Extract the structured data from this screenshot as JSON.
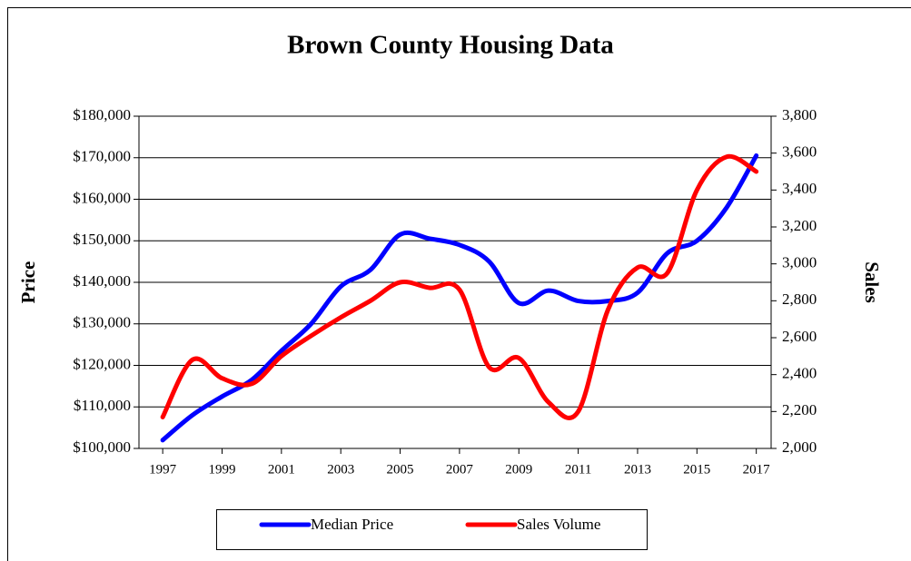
{
  "chart_data": {
    "type": "line",
    "title": "Brown County Housing  Data",
    "ylabel": "Price",
    "y2label": "Sales",
    "x": [
      1997,
      1998,
      1999,
      2000,
      2001,
      2002,
      2003,
      2004,
      2005,
      2006,
      2007,
      2008,
      2009,
      2010,
      2011,
      2012,
      2013,
      2014,
      2015,
      2016,
      2017
    ],
    "xlim": [
      1996.2,
      2017.5
    ],
    "xticks": [
      1997,
      1999,
      2001,
      2003,
      2005,
      2007,
      2009,
      2011,
      2013,
      2015,
      2017
    ],
    "ylim": [
      100000,
      180000
    ],
    "yticks": [
      {
        "value": 100000,
        "label": "$100,000"
      },
      {
        "value": 110000,
        "label": "$110,000"
      },
      {
        "value": 120000,
        "label": "$120,000"
      },
      {
        "value": 130000,
        "label": "$130,000"
      },
      {
        "value": 140000,
        "label": "$140,000"
      },
      {
        "value": 150000,
        "label": "$150,000"
      },
      {
        "value": 160000,
        "label": "$160,000"
      },
      {
        "value": 170000,
        "label": "$170,000"
      },
      {
        "value": 180000,
        "label": "$180,000"
      }
    ],
    "y2lim": [
      2000,
      3800
    ],
    "y2ticks": [
      {
        "value": 2000,
        "label": "2,000"
      },
      {
        "value": 2200,
        "label": "2,200"
      },
      {
        "value": 2400,
        "label": "2,400"
      },
      {
        "value": 2600,
        "label": "2,600"
      },
      {
        "value": 2800,
        "label": "2,800"
      },
      {
        "value": 3000,
        "label": "3,000"
      },
      {
        "value": 3200,
        "label": "3,200"
      },
      {
        "value": 3400,
        "label": "3,400"
      },
      {
        "value": 3600,
        "label": "3,600"
      },
      {
        "value": 3800,
        "label": "3,800"
      }
    ],
    "grid": true,
    "legend": "bottom",
    "series": [
      {
        "name": "Median Price",
        "color": "#0000ff",
        "values": [
          102000,
          108000,
          112500,
          116500,
          123500,
          130000,
          139000,
          143000,
          151500,
          150500,
          149000,
          145000,
          135000,
          138000,
          135500,
          135500,
          137500,
          147000,
          150000,
          158000,
          170500
        ]
      },
      {
        "name": "Sales Volume",
        "color": "#ff0000",
        "axis": "y2",
        "values": [
          2170,
          2480,
          2380,
          2350,
          2500,
          2610,
          2710,
          2800,
          2900,
          2870,
          2860,
          2440,
          2490,
          2250,
          2200,
          2750,
          2980,
          2950,
          3400,
          3580,
          3500
        ]
      }
    ]
  }
}
